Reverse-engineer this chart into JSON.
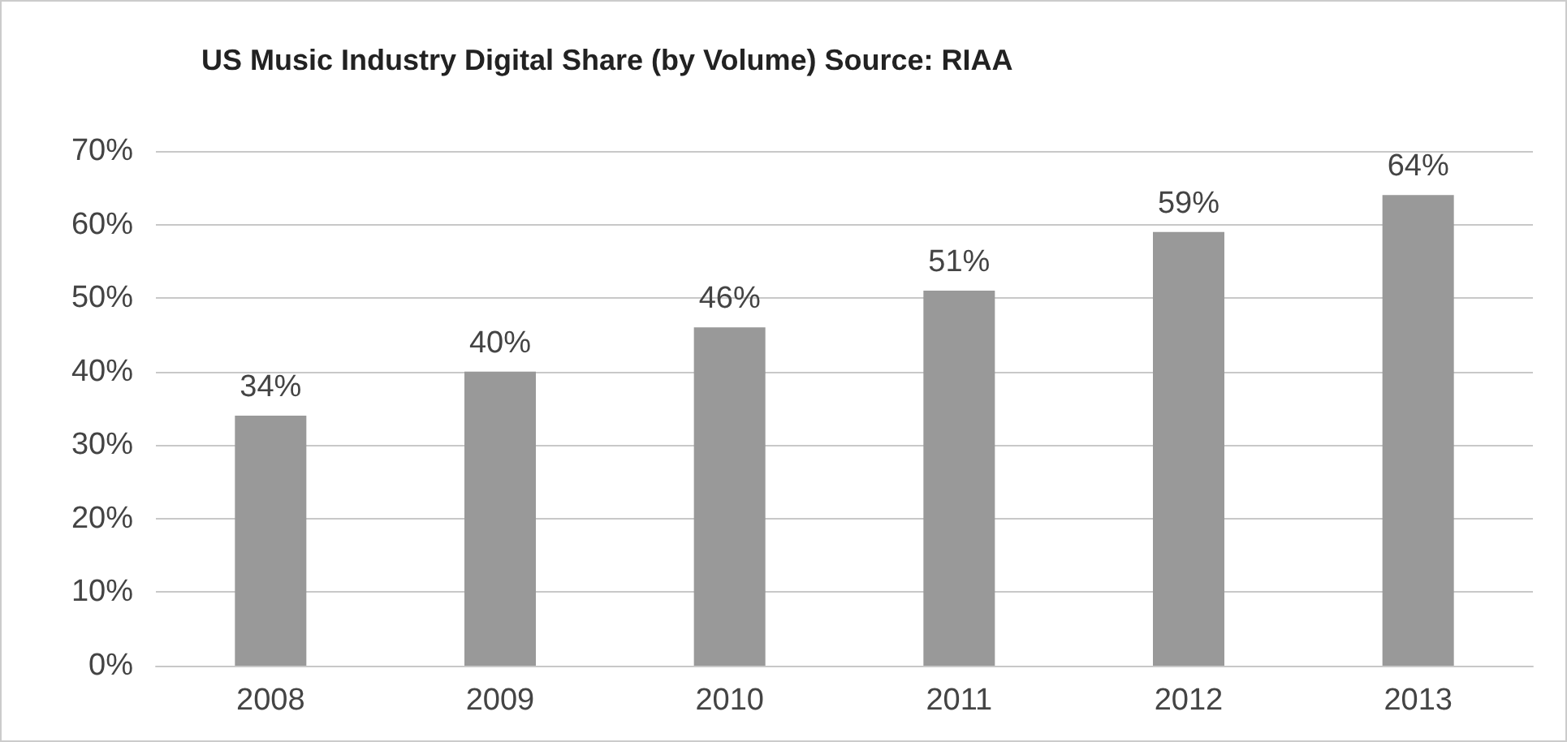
{
  "chart_data": {
    "type": "bar",
    "title": "US Music Industry Digital Share (by Volume) Source: RIAA",
    "categories": [
      "2008",
      "2009",
      "2010",
      "2011",
      "2012",
      "2013"
    ],
    "values": [
      34,
      40,
      46,
      51,
      59,
      64
    ],
    "value_labels": [
      "34%",
      "40%",
      "46%",
      "51%",
      "59%",
      "64%"
    ],
    "color": "#999999",
    "ylim": [
      0,
      70
    ],
    "yticks": [
      {
        "value": 0,
        "label": "0%"
      },
      {
        "value": 10,
        "label": "10%"
      },
      {
        "value": 20,
        "label": "20%"
      },
      {
        "value": 30,
        "label": "30%"
      },
      {
        "value": 40,
        "label": "40%"
      },
      {
        "value": 50,
        "label": "50%"
      },
      {
        "value": 60,
        "label": "60%"
      },
      {
        "value": 70,
        "label": "70%"
      }
    ],
    "grid": "y"
  }
}
